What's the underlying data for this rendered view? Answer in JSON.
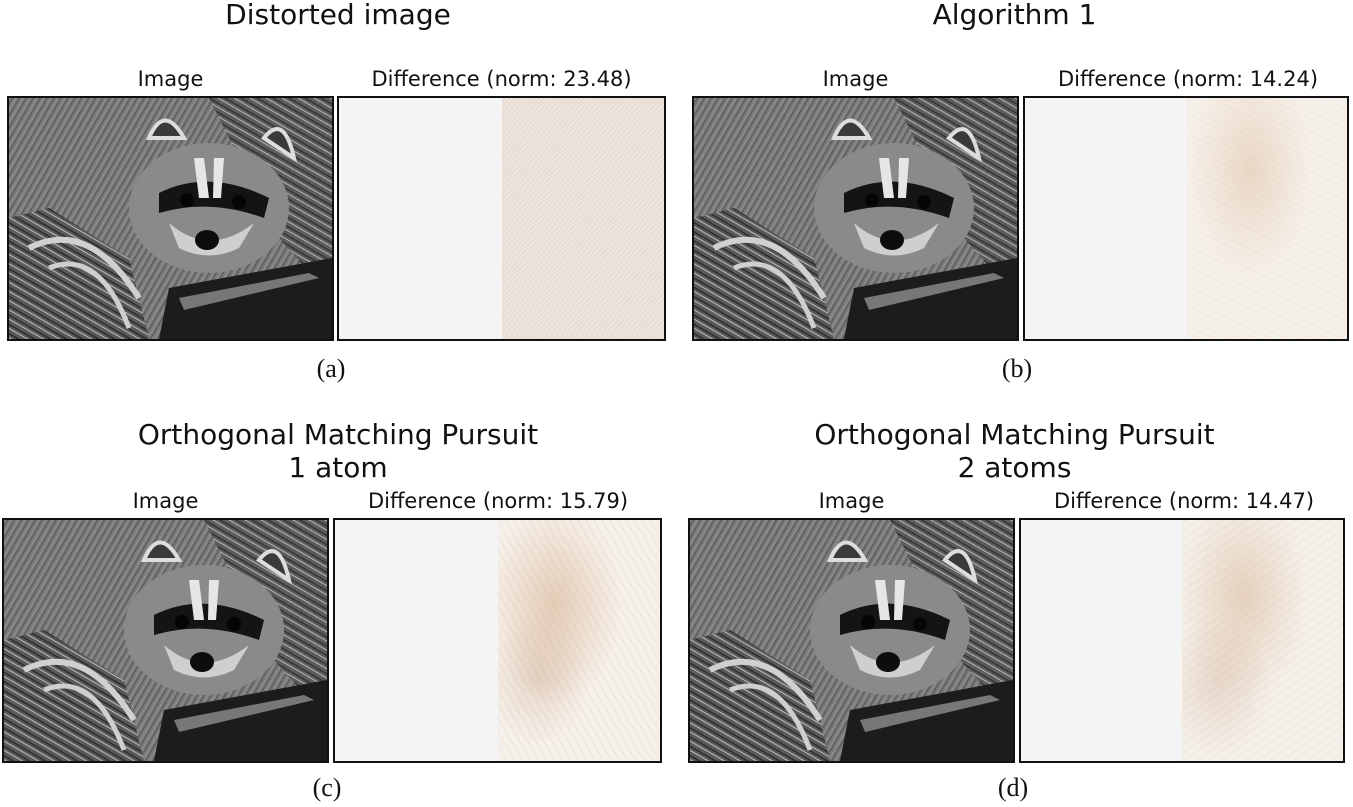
{
  "panels": [
    {
      "title_lines": [
        "Distorted image"
      ],
      "image_label": "Image",
      "diff_label": "Difference (norm: 23.48)",
      "caption": "(a)"
    },
    {
      "title_lines": [
        "Algorithm 1"
      ],
      "image_label": "Image",
      "diff_label": "Difference (norm: 14.24)",
      "caption": "(b)"
    },
    {
      "title_lines": [
        "Orthogonal Matching Pursuit",
        "1 atom"
      ],
      "image_label": "Image",
      "diff_label": "Difference (norm: 15.79)",
      "caption": "(c)"
    },
    {
      "title_lines": [
        "Orthogonal Matching Pursuit",
        "2 atoms"
      ],
      "image_label": "Image",
      "diff_label": "Difference (norm: 14.47)",
      "caption": "(d)"
    }
  ]
}
